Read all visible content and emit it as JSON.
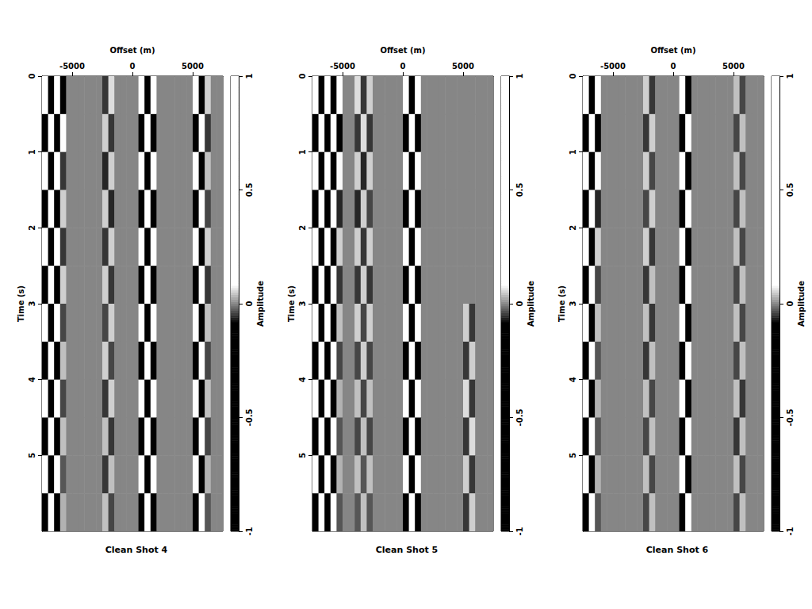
{
  "chart_data": [
    {
      "type": "heatmap",
      "title": "Clean Shot 4",
      "x_label": "Offset (m)",
      "y_label": "Time (s)",
      "xlim": [
        -7500,
        7500
      ],
      "xticks": [
        -5000,
        0,
        5000
      ],
      "ylim": [
        0,
        6
      ],
      "yticks": [
        0,
        1,
        2,
        3,
        4,
        5
      ],
      "offsets": [
        -7250,
        -6750,
        -6250,
        -5750,
        -5250,
        -4750,
        -4250,
        -3750,
        -3250,
        -2750,
        -2250,
        -1750,
        -1250,
        -750,
        -250,
        250,
        750,
        1250,
        1750,
        2250,
        2750,
        3250,
        3750,
        4250,
        4750,
        5250,
        5750,
        6250,
        6750,
        7250
      ],
      "times": [
        0.25,
        0.75,
        1.25,
        1.75,
        2.25,
        2.75,
        3.25,
        3.75,
        4.25,
        4.75,
        5.25,
        5.75
      ],
      "amplitude": [
        [
          0.8,
          -0.7,
          0.5,
          -0.1,
          0,
          0,
          0,
          0,
          0,
          0,
          -0.05,
          0.06,
          0,
          0,
          0,
          0,
          0.9,
          -0.9,
          0.8,
          0,
          0,
          0,
          0,
          0,
          0,
          0.3,
          -0.3,
          0.05,
          0,
          0
        ],
        [
          -0.7,
          0.8,
          -0.5,
          0.1,
          0,
          0,
          0,
          0,
          0,
          0,
          0.05,
          -0.05,
          0,
          0,
          0,
          0,
          -0.9,
          0.9,
          -0.8,
          0,
          0,
          0,
          0,
          0,
          0,
          -0.3,
          0.3,
          -0.05,
          0,
          0
        ],
        [
          0.7,
          -0.8,
          0.4,
          -0.05,
          0,
          0,
          0,
          0,
          0,
          0,
          -0.06,
          0.05,
          0,
          0,
          0,
          0,
          0.9,
          -0.8,
          0.9,
          0,
          0,
          0,
          0,
          0,
          0,
          0.2,
          -0.3,
          0.04,
          0,
          0
        ],
        [
          -0.8,
          0.7,
          -0.4,
          0.05,
          0,
          0,
          0,
          0,
          0,
          0,
          0.05,
          -0.06,
          0,
          0,
          0,
          0,
          -0.8,
          0.9,
          -0.9,
          0,
          0,
          0,
          0,
          0,
          0,
          -0.3,
          0.2,
          -0.04,
          0,
          0
        ],
        [
          0.7,
          -0.6,
          0.4,
          -0.05,
          0,
          0,
          0,
          0,
          0,
          0,
          -0.05,
          0.05,
          0,
          0,
          0,
          0,
          0.9,
          -0.9,
          0.8,
          0,
          0,
          0,
          0,
          0,
          0,
          0.3,
          -0.3,
          0.05,
          0,
          0
        ],
        [
          -0.6,
          0.7,
          -0.3,
          0.05,
          0,
          0,
          0,
          0,
          0,
          0,
          0.05,
          -0.05,
          0,
          0,
          0,
          0,
          -0.9,
          0.8,
          -0.9,
          0,
          0,
          0,
          0,
          0,
          0,
          -0.3,
          0.3,
          -0.05,
          0,
          0
        ],
        [
          0.7,
          -0.6,
          0.3,
          -0.04,
          0,
          0,
          0,
          0,
          0,
          0,
          -0.04,
          0.05,
          0,
          0,
          0,
          0,
          0.9,
          -0.9,
          0.9,
          0,
          0,
          0,
          0,
          0,
          0,
          0.3,
          -0.3,
          0.04,
          0,
          0
        ],
        [
          -0.6,
          0.6,
          -0.3,
          0.04,
          0,
          0,
          0,
          0,
          0,
          0,
          0.05,
          -0.04,
          0,
          0,
          0,
          0,
          -0.9,
          0.9,
          -0.8,
          0,
          0,
          0,
          0,
          0,
          0,
          -0.3,
          0.3,
          -0.04,
          0,
          0
        ],
        [
          0.6,
          -0.6,
          0.3,
          -0.04,
          0,
          0,
          0,
          0,
          0,
          0,
          -0.05,
          0.05,
          0,
          0,
          0,
          0,
          0.9,
          -0.9,
          0.9,
          0,
          0,
          0,
          0,
          0,
          0,
          0.3,
          -0.2,
          0.04,
          0,
          0
        ],
        [
          -0.6,
          0.5,
          -0.3,
          0.04,
          0,
          0,
          0,
          0,
          0,
          0,
          0.04,
          -0.05,
          0,
          0,
          0,
          0,
          -0.9,
          0.9,
          -0.9,
          0,
          0,
          0,
          0,
          0,
          0,
          -0.2,
          0.3,
          -0.04,
          0,
          0
        ],
        [
          0.5,
          -0.6,
          0.3,
          -0.03,
          0,
          0,
          0,
          0,
          0,
          0,
          -0.05,
          0.04,
          0,
          0,
          0,
          0,
          0.9,
          -0.9,
          0.8,
          0,
          0,
          0,
          0,
          0,
          0,
          0.3,
          -0.3,
          0.03,
          0,
          0
        ],
        [
          -0.5,
          0.5,
          -0.2,
          0.03,
          0,
          0,
          0,
          0,
          0,
          0,
          0.04,
          -0.04,
          0,
          0,
          0,
          0,
          -0.8,
          0.9,
          -0.9,
          0,
          0,
          0,
          0,
          0,
          0,
          -0.3,
          0.3,
          -0.03,
          0,
          0
        ]
      ],
      "colorbar": {
        "label": "Amplitude",
        "range": [
          -1,
          1
        ],
        "ticks": [
          -1,
          -0.5,
          0,
          0.5,
          1
        ]
      }
    },
    {
      "type": "heatmap",
      "title": "Clean Shot 5",
      "x_label": "Offset (m)",
      "y_label": "Time (s)",
      "xlim": [
        -7500,
        7500
      ],
      "xticks": [
        -5000,
        0,
        5000
      ],
      "ylim": [
        0,
        6
      ],
      "yticks": [
        0,
        1,
        2,
        3,
        4,
        5
      ],
      "offsets": [
        -7250,
        -6750,
        -6250,
        -5750,
        -5250,
        -4750,
        -4250,
        -3750,
        -3250,
        -2750,
        -2250,
        -1750,
        -1250,
        -750,
        -250,
        250,
        750,
        1250,
        1750,
        2250,
        2750,
        3250,
        3750,
        4250,
        4750,
        5250,
        5750,
        6250,
        6750,
        7250
      ],
      "times": [
        0.25,
        0.75,
        1.25,
        1.75,
        2.25,
        2.75,
        3.25,
        3.75,
        4.25,
        4.75,
        5.25,
        5.75
      ],
      "amplitude": [
        [
          0.8,
          -0.7,
          0.6,
          -0.5,
          0.1,
          0,
          0,
          0.06,
          -0.05,
          0.05,
          0,
          0,
          0,
          0,
          0,
          0.8,
          -0.9,
          0.7,
          0,
          0,
          0,
          0,
          0,
          0,
          0,
          0,
          0,
          0,
          0,
          0
        ],
        [
          -0.7,
          0.8,
          -0.6,
          0.4,
          -0.1,
          0,
          0,
          -0.05,
          0.06,
          -0.05,
          0,
          0,
          0,
          0,
          0,
          -0.8,
          0.8,
          -0.7,
          0,
          0,
          0,
          0,
          0,
          0,
          0,
          0,
          0,
          0,
          0,
          0
        ],
        [
          0.7,
          -0.7,
          0.5,
          -0.4,
          0.08,
          0,
          0,
          0.05,
          -0.06,
          0.05,
          0,
          0,
          0,
          0,
          0,
          0.8,
          -0.9,
          0.8,
          0,
          0,
          0,
          0,
          0,
          0,
          0,
          0,
          0,
          0,
          0,
          0
        ],
        [
          -0.7,
          0.6,
          -0.5,
          0.3,
          -0.06,
          0,
          0,
          -0.06,
          0.05,
          -0.04,
          0,
          0,
          0,
          0,
          0,
          -0.9,
          0.8,
          -0.8,
          0,
          0,
          0,
          0,
          0,
          0,
          0,
          0,
          0,
          0,
          0,
          0
        ],
        [
          0.6,
          -0.6,
          0.4,
          -0.3,
          0.05,
          0,
          0,
          0.05,
          -0.05,
          0.05,
          0,
          0,
          0,
          0,
          0,
          0.8,
          -0.8,
          0.7,
          0,
          0,
          0,
          0,
          0,
          0,
          0,
          0,
          0,
          0,
          0,
          0
        ],
        [
          -0.6,
          0.5,
          -0.4,
          0.2,
          -0.05,
          0,
          0,
          -0.05,
          0.05,
          -0.05,
          0,
          0,
          0,
          0,
          0,
          -0.8,
          0.9,
          -0.8,
          0,
          0,
          0,
          0,
          0,
          0,
          0,
          0,
          0,
          0,
          0,
          0
        ],
        [
          0.5,
          -0.5,
          0.3,
          -0.2,
          0.04,
          0,
          0,
          0.05,
          -0.04,
          0.05,
          0,
          0,
          0,
          0,
          0,
          0.9,
          -0.8,
          0.8,
          0,
          0,
          0,
          0,
          0,
          0,
          0,
          0.05,
          -0.05,
          0,
          0,
          0
        ],
        [
          -0.5,
          0.5,
          -0.3,
          0.2,
          -0.04,
          0,
          0,
          -0.04,
          0.05,
          -0.04,
          0,
          0,
          0,
          0,
          0,
          -0.8,
          0.8,
          -0.7,
          0,
          0,
          0,
          0,
          0,
          0,
          0,
          -0.05,
          0.05,
          0,
          0,
          0
        ],
        [
          0.5,
          -0.4,
          0.3,
          -0.15,
          0.03,
          0,
          0,
          0.04,
          -0.04,
          0.04,
          0,
          0,
          0,
          0,
          0,
          0.8,
          -0.9,
          0.8,
          0,
          0,
          0,
          0,
          0,
          0,
          0,
          0.06,
          -0.05,
          0,
          0,
          0
        ],
        [
          -0.4,
          0.5,
          -0.3,
          0.15,
          -0.03,
          0,
          0,
          -0.04,
          0.04,
          -0.04,
          0,
          0,
          0,
          0,
          0,
          -0.9,
          0.8,
          -0.8,
          0,
          0,
          0,
          0,
          0,
          0,
          0,
          -0.05,
          0.06,
          0,
          0,
          0
        ],
        [
          0.4,
          -0.4,
          0.2,
          -0.1,
          0.03,
          0,
          0,
          0.04,
          -0.03,
          0.04,
          0,
          0,
          0,
          0,
          0,
          0.8,
          -0.8,
          0.7,
          0,
          0,
          0,
          0,
          0,
          0,
          0,
          0.05,
          -0.05,
          0,
          0,
          0
        ],
        [
          -0.4,
          0.4,
          -0.2,
          0.1,
          -0.03,
          0,
          0,
          -0.03,
          0.04,
          -0.03,
          0,
          0,
          0,
          0,
          0,
          -0.8,
          0.8,
          -0.8,
          0,
          0,
          0,
          0,
          0,
          0,
          0,
          -0.05,
          0.05,
          0,
          0,
          0
        ]
      ],
      "colorbar": {
        "label": "Amplitude",
        "range": [
          -1,
          1
        ],
        "ticks": [
          -1,
          -0.5,
          0,
          0.5,
          1
        ]
      }
    },
    {
      "type": "heatmap",
      "title": "Clean Shot 6",
      "x_label": "Offset (m)",
      "y_label": "Time (s)",
      "xlim": [
        -7500,
        7500
      ],
      "xticks": [
        -5000,
        0,
        5000
      ],
      "ylim": [
        0,
        6
      ],
      "yticks": [
        0,
        1,
        2,
        3,
        4,
        5
      ],
      "offsets": [
        -7250,
        -6750,
        -6250,
        -5750,
        -5250,
        -4750,
        -4250,
        -3750,
        -3250,
        -2750,
        -2250,
        -1750,
        -1250,
        -750,
        -250,
        250,
        750,
        1250,
        1750,
        2250,
        2750,
        3250,
        3750,
        4250,
        4750,
        5250,
        5750,
        6250,
        6750,
        7250
      ],
      "times": [
        0.25,
        0.75,
        1.25,
        1.75,
        2.25,
        2.75,
        3.25,
        3.75,
        4.25,
        4.75,
        5.25,
        5.75
      ],
      "amplitude": [
        [
          0.5,
          -0.4,
          0.1,
          0,
          0,
          0,
          0,
          0,
          0,
          0,
          0.05,
          -0.05,
          0,
          0,
          0,
          0,
          0.1,
          -0.1,
          0,
          0,
          0,
          0,
          0,
          0,
          0,
          0.04,
          -0.04,
          0,
          0,
          0
        ],
        [
          -0.4,
          0.5,
          -0.1,
          0,
          0,
          0,
          0,
          0,
          0,
          0,
          -0.05,
          0.05,
          0,
          0,
          0,
          0,
          -0.1,
          0.1,
          0,
          0,
          0,
          0,
          0,
          0,
          0,
          -0.04,
          0.04,
          0,
          0,
          0
        ],
        [
          0.4,
          -0.4,
          0.08,
          0,
          0,
          0,
          0,
          0,
          0,
          0,
          0.05,
          -0.04,
          0,
          0,
          0,
          0,
          0.1,
          -0.1,
          0,
          0,
          0,
          0,
          0,
          0,
          0,
          0.04,
          -0.04,
          0,
          0,
          0
        ],
        [
          -0.3,
          0.4,
          -0.06,
          0,
          0,
          0,
          0,
          0,
          0,
          0,
          -0.04,
          0.05,
          0,
          0,
          0,
          0,
          -0.1,
          0.1,
          0,
          0,
          0,
          0,
          0,
          0,
          0,
          -0.04,
          0.04,
          0,
          0,
          0
        ],
        [
          0.2,
          -0.2,
          0.05,
          0,
          0,
          0,
          0,
          0,
          0,
          0,
          0.05,
          -0.05,
          0,
          0,
          0,
          0,
          0.1,
          -0.1,
          0,
          0,
          0,
          0,
          0,
          0,
          0,
          0.04,
          -0.04,
          0,
          0,
          0
        ],
        [
          -0.2,
          0.15,
          -0.04,
          0,
          0,
          0,
          0,
          0,
          0,
          0,
          -0.05,
          0.04,
          0,
          0,
          0,
          0,
          -0.1,
          0.1,
          0,
          0,
          0,
          0,
          0,
          0,
          0,
          -0.04,
          0.04,
          0,
          0,
          0
        ],
        [
          0.15,
          -0.15,
          0.04,
          0,
          0,
          0,
          0,
          0,
          0,
          0,
          0.04,
          -0.05,
          0,
          0,
          0,
          0,
          0.15,
          -0.1,
          0,
          0,
          0,
          0,
          0,
          0,
          0,
          0.04,
          -0.04,
          0,
          0,
          0
        ],
        [
          -0.15,
          0.1,
          -0.03,
          0,
          0,
          0,
          0,
          0,
          0,
          0,
          -0.05,
          0.04,
          0,
          0,
          0,
          0,
          -0.2,
          0.15,
          0,
          0,
          0,
          0,
          0,
          0,
          0,
          -0.04,
          0.04,
          0,
          0,
          0
        ],
        [
          0.1,
          -0.1,
          0.03,
          0,
          0,
          0,
          0,
          0,
          0,
          0,
          0.04,
          -0.04,
          0,
          0,
          0,
          0,
          0.3,
          -0.2,
          0,
          0,
          0,
          0,
          0,
          0,
          0,
          0.04,
          -0.05,
          0,
          0,
          0
        ],
        [
          -0.1,
          0.1,
          -0.03,
          0,
          0,
          0,
          0,
          0,
          0,
          0,
          -0.04,
          0.04,
          0,
          0,
          0,
          0,
          -0.6,
          0.5,
          0,
          0,
          0,
          0,
          0,
          0,
          0,
          -0.05,
          0.04,
          0,
          0,
          0
        ],
        [
          0.1,
          -0.1,
          0.03,
          0,
          0,
          0,
          0,
          0,
          0,
          0,
          0.04,
          -0.04,
          0,
          0,
          0,
          0,
          0.7,
          -0.6,
          0,
          0,
          0,
          0,
          0,
          0,
          0,
          0.04,
          -0.04,
          0,
          0,
          0
        ],
        [
          -0.1,
          0.1,
          -0.03,
          0,
          0,
          0,
          0,
          0,
          0,
          0,
          -0.04,
          0.04,
          0,
          0,
          0,
          0,
          -0.6,
          0.7,
          0,
          0,
          0,
          0,
          0,
          0,
          0,
          -0.04,
          0.04,
          0,
          0,
          0
        ]
      ],
      "colorbar": {
        "label": "Amplitude",
        "range": [
          -1,
          1
        ],
        "ticks": [
          -1,
          -0.5,
          0,
          0.5,
          1
        ]
      }
    }
  ]
}
